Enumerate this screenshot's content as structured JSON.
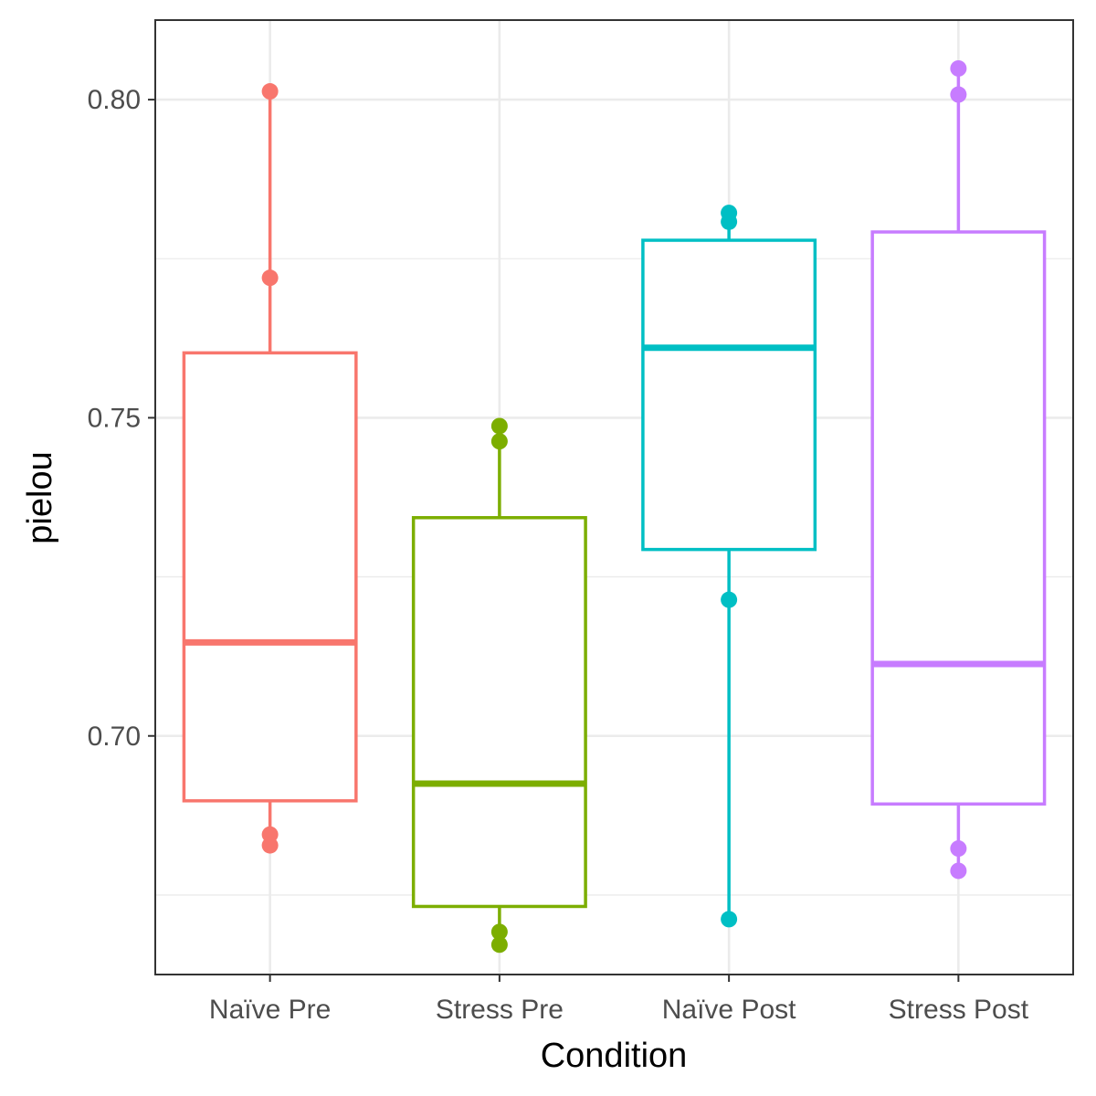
{
  "chart_data": {
    "type": "boxplot",
    "xlabel": "Condition",
    "ylabel": "pielou",
    "ylim": [
      0.6625,
      0.8125
    ],
    "y_ticks": [
      0.7,
      0.75,
      0.8
    ],
    "y_tick_labels": [
      "0.70",
      "0.75",
      "0.80"
    ],
    "y_minor_ticks": [
      0.675,
      0.725,
      0.775
    ],
    "grid": true,
    "legend": "none",
    "categories": [
      "Naïve Pre",
      "Stress Pre",
      "Naïve Post",
      "Stress Post"
    ],
    "series": [
      {
        "category": "Naïve Pre",
        "color": "#F8766D",
        "q1": 0.6898,
        "median": 0.7147,
        "q3": 0.7602,
        "whisker_low": 0.6845,
        "whisker_high": 0.8013,
        "points": [
          0.8013,
          0.772,
          0.6845,
          0.6828
        ]
      },
      {
        "category": "Stress Pre",
        "color": "#7CAE00",
        "q1": 0.6732,
        "median": 0.6925,
        "q3": 0.7343,
        "whisker_low": 0.6672,
        "whisker_high": 0.7487,
        "points": [
          0.7487,
          0.7463,
          0.6692,
          0.6672
        ]
      },
      {
        "category": "Naïve Post",
        "color": "#00BFC4",
        "q1": 0.7293,
        "median": 0.761,
        "q3": 0.7779,
        "whisker_low": 0.6712,
        "whisker_high": 0.7822,
        "points": [
          0.7822,
          0.7808,
          0.7214,
          0.6712
        ]
      },
      {
        "category": "Stress Post",
        "color": "#C77CFF",
        "q1": 0.6893,
        "median": 0.7113,
        "q3": 0.7792,
        "whisker_low": 0.6788,
        "whisker_high": 0.8049,
        "points": [
          0.8049,
          0.8008,
          0.6823,
          0.6788
        ]
      }
    ]
  }
}
